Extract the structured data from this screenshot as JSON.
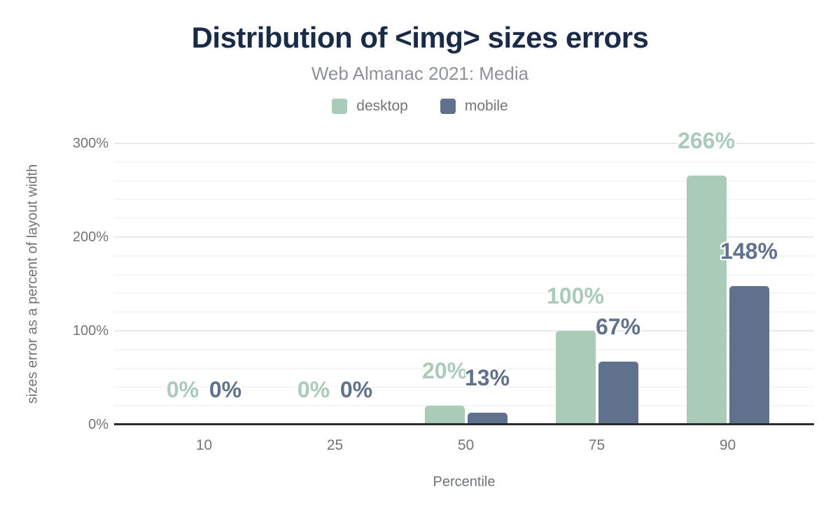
{
  "chart_data": {
    "type": "bar",
    "title": "Distribution of <img> sizes errors",
    "subtitle": "Web Almanac 2021: Media",
    "categories": [
      "10",
      "25",
      "50",
      "75",
      "90"
    ],
    "series": [
      {
        "name": "desktop",
        "color": "#a9cbb8",
        "values": [
          0,
          0,
          20,
          100,
          266
        ],
        "labels": [
          "0%",
          "0%",
          "20%",
          "100%",
          "266%"
        ]
      },
      {
        "name": "mobile",
        "color": "#5f718c",
        "values": [
          0,
          0,
          13,
          67,
          148
        ],
        "labels": [
          "0%",
          "0%",
          "13%",
          "67%",
          "148%"
        ]
      }
    ],
    "xlabel": "Percentile",
    "ylabel": "sizes error as a percent of layout width",
    "ylim": [
      0,
      300
    ],
    "yticks": [
      0,
      100,
      200,
      300
    ],
    "ytick_labels": [
      "0%",
      "100%",
      "200%",
      "300%"
    ],
    "minor_grid_step": 20,
    "grid": true,
    "legend_position": "top"
  },
  "colors": {
    "title": "#1a2b49",
    "subtitle_text": "#8e9297",
    "axis_text": "#757575",
    "gridline_minor": "#f5f5f5",
    "gridline_major": "#e9e9e9",
    "baseline": "#2b2b2b",
    "background": "#ffffff"
  }
}
